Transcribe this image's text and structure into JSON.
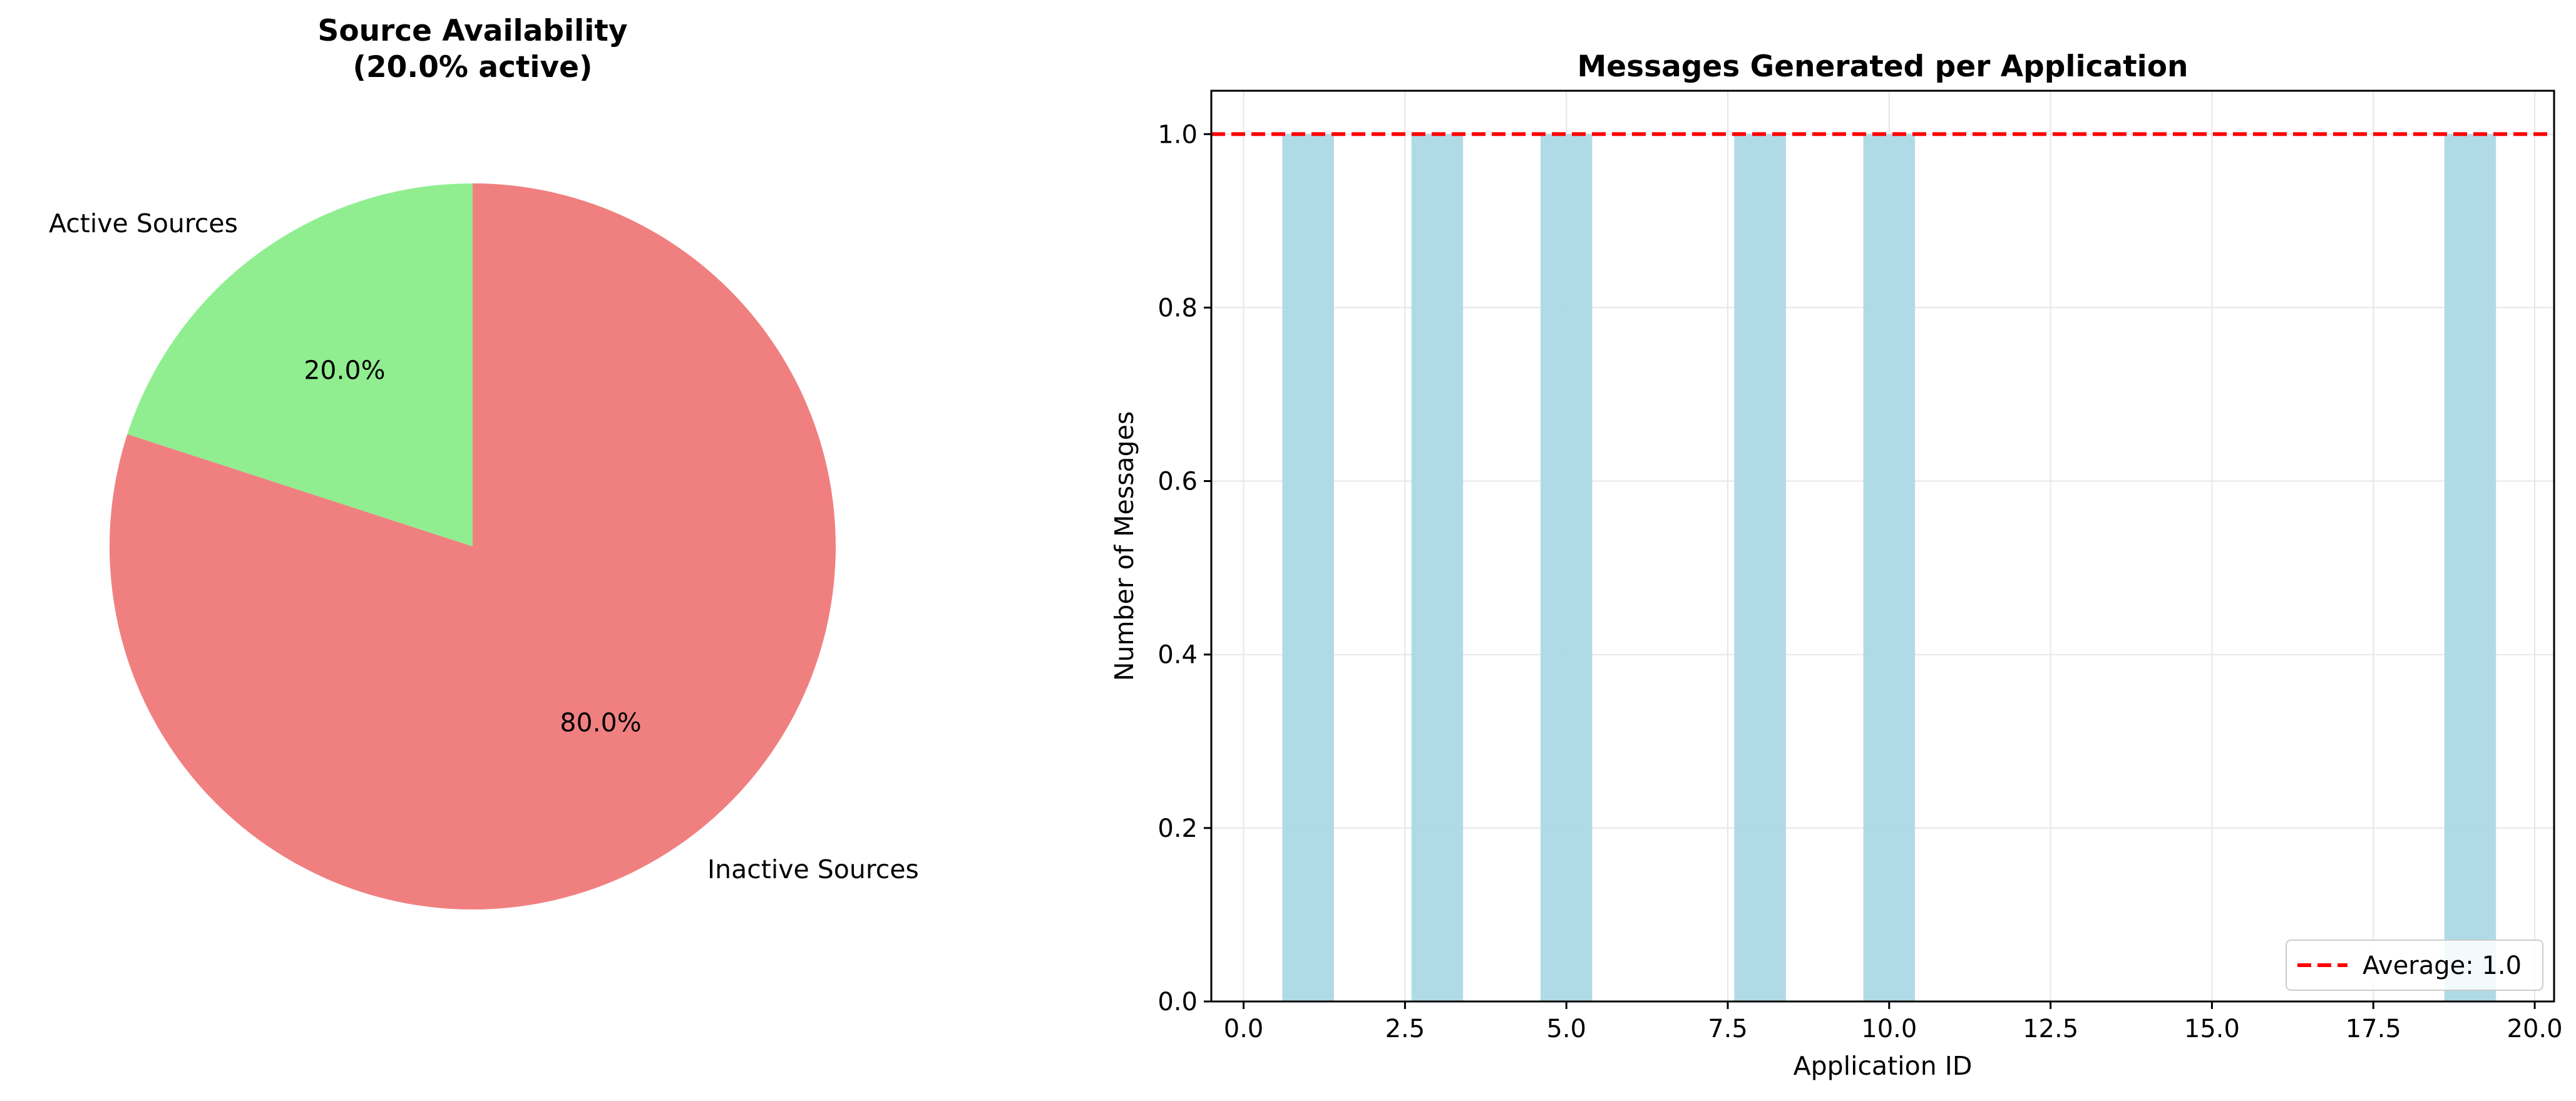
{
  "colors": {
    "active": "#90ee90",
    "inactive": "#f08080",
    "bar": "#add8e6",
    "average_line": "#ff0000",
    "grid": "#e6e6e6",
    "axis": "#000000"
  },
  "chart_data": [
    {
      "type": "pie",
      "title": "Source Availability\n(20.0% active)",
      "start_angle_deg": 90,
      "direction": "counterclockwise",
      "slices": [
        {
          "label": "Active Sources",
          "value": 20.0,
          "pct_label": "20.0%",
          "color": "#90ee90"
        },
        {
          "label": "Inactive Sources",
          "value": 80.0,
          "pct_label": "80.0%",
          "color": "#f08080"
        }
      ]
    },
    {
      "type": "bar",
      "title": "Messages Generated per Application",
      "xlabel": "Application ID",
      "ylabel": "Number of Messages",
      "xlim": [
        -0.5,
        20.3
      ],
      "ylim": [
        0.0,
        1.05
      ],
      "bar_width": 0.8,
      "grid": true,
      "x": [
        1,
        3,
        5,
        8,
        10,
        19
      ],
      "values": [
        1,
        1,
        1,
        1,
        1,
        1
      ],
      "xticks": [
        0.0,
        2.5,
        5.0,
        7.5,
        10.0,
        12.5,
        15.0,
        17.5,
        20.0
      ],
      "xtick_labels": [
        "0.0",
        "2.5",
        "5.0",
        "7.5",
        "10.0",
        "12.5",
        "15.0",
        "17.5",
        "20.0"
      ],
      "yticks": [
        0.0,
        0.2,
        0.4,
        0.6,
        0.8,
        1.0
      ],
      "ytick_labels": [
        "0.0",
        "0.2",
        "0.4",
        "0.6",
        "0.8",
        "1.0"
      ],
      "average": {
        "value": 1.0,
        "label": "Average: 1.0"
      },
      "legend_position": "lower-right"
    }
  ]
}
